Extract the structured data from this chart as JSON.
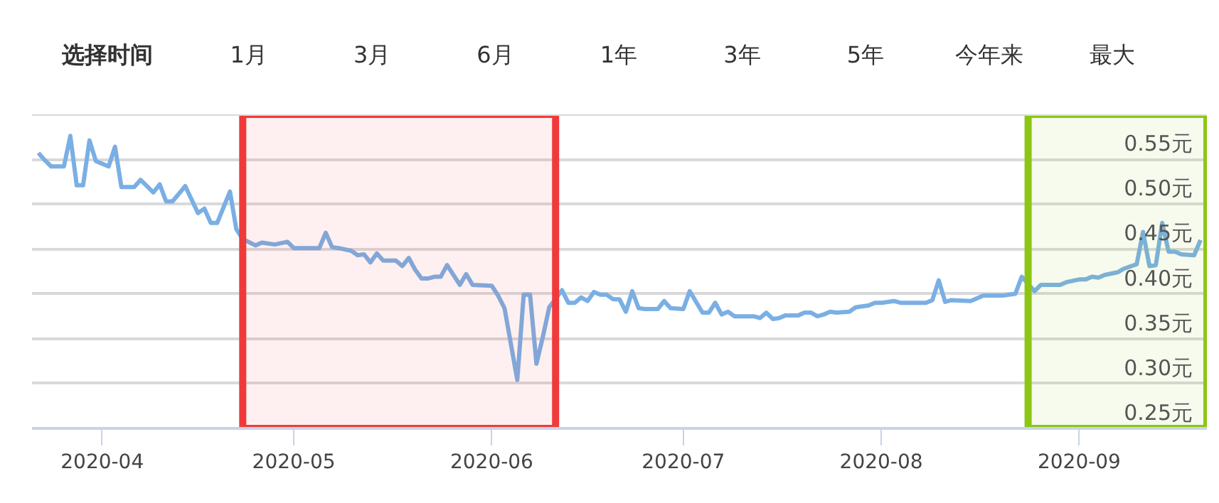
{
  "chart_data": {
    "type": "line",
    "title": "选择时间",
    "annotations": [
      "1月",
      "3月",
      "6月",
      "1年",
      "3年",
      "5年",
      "今年来",
      "最大"
    ],
    "x": [
      "2020-03-22",
      "2020-03-23",
      "2020-03-24",
      "2020-03-26",
      "2020-03-27",
      "2020-03-28",
      "2020-03-29",
      "2020-03-30",
      "2020-03-31",
      "2020-04-02",
      "2020-04-03",
      "2020-04-04",
      "2020-04-06",
      "2020-04-07",
      "2020-04-09",
      "2020-04-10",
      "2020-04-11",
      "2020-04-12",
      "2020-04-14",
      "2020-04-16",
      "2020-04-17",
      "2020-04-18",
      "2020-04-19",
      "2020-04-21",
      "2020-04-22",
      "2020-04-23",
      "2020-04-25",
      "2020-04-26",
      "2020-04-28",
      "2020-04-30",
      "2020-05-01",
      "2020-05-05",
      "2020-05-06",
      "2020-05-07",
      "2020-05-08",
      "2020-05-10",
      "2020-05-11",
      "2020-05-12",
      "2020-05-13",
      "2020-05-14",
      "2020-05-15",
      "2020-05-17",
      "2020-05-18",
      "2020-05-19",
      "2020-05-20",
      "2020-05-21",
      "2020-05-22",
      "2020-05-23",
      "2020-05-24",
      "2020-05-25",
      "2020-05-27",
      "2020-05-28",
      "2020-05-29",
      "2020-06-01",
      "2020-06-02",
      "2020-06-03",
      "2020-06-05",
      "2020-06-06",
      "2020-06-07",
      "2020-06-08",
      "2020-06-09",
      "2020-06-10",
      "2020-06-12",
      "2020-06-13",
      "2020-06-14",
      "2020-06-15",
      "2020-06-16",
      "2020-06-17",
      "2020-06-18",
      "2020-06-19",
      "2020-06-20",
      "2020-06-21",
      "2020-06-22",
      "2020-06-23",
      "2020-06-24",
      "2020-06-25",
      "2020-06-27",
      "2020-06-28",
      "2020-06-29",
      "2020-07-01",
      "2020-07-02",
      "2020-07-04",
      "2020-07-05",
      "2020-07-06",
      "2020-07-07",
      "2020-07-08",
      "2020-07-09",
      "2020-07-12",
      "2020-07-13",
      "2020-07-14",
      "2020-07-15",
      "2020-07-16",
      "2020-07-17",
      "2020-07-19",
      "2020-07-20",
      "2020-07-21",
      "2020-07-22",
      "2020-07-23",
      "2020-07-24",
      "2020-07-25",
      "2020-07-27",
      "2020-07-28",
      "2020-07-30",
      "2020-07-31",
      "2020-08-01",
      "2020-08-03",
      "2020-08-04",
      "2020-08-08",
      "2020-08-09",
      "2020-08-10",
      "2020-08-11",
      "2020-08-12",
      "2020-08-15",
      "2020-08-17",
      "2020-08-20",
      "2020-08-22",
      "2020-08-23",
      "2020-08-25",
      "2020-08-26",
      "2020-08-29",
      "2020-08-30",
      "2020-09-01",
      "2020-09-02",
      "2020-09-03",
      "2020-09-04",
      "2020-09-05",
      "2020-09-07",
      "2020-09-08",
      "2020-09-10",
      "2020-09-11",
      "2020-09-12",
      "2020-09-13",
      "2020-09-14",
      "2020-09-15",
      "2020-09-16",
      "2020-09-17",
      "2020-09-19",
      "2020-09-20"
    ],
    "series": [
      {
        "color": "#7aafe4",
        "values": [
          0.557,
          0.549,
          0.542,
          0.542,
          0.576,
          0.521,
          0.521,
          0.571,
          0.548,
          0.542,
          0.564,
          0.519,
          0.519,
          0.527,
          0.513,
          0.522,
          0.503,
          0.503,
          0.52,
          0.49,
          0.495,
          0.479,
          0.479,
          0.514,
          0.472,
          0.461,
          0.454,
          0.457,
          0.455,
          0.458,
          0.451,
          0.451,
          0.468,
          0.452,
          0.451,
          0.448,
          0.443,
          0.444,
          0.435,
          0.445,
          0.437,
          0.437,
          0.431,
          0.44,
          0.427,
          0.417,
          0.417,
          0.419,
          0.419,
          0.432,
          0.41,
          0.422,
          0.41,
          0.409,
          0.398,
          0.384,
          0.304,
          0.399,
          0.399,
          0.322,
          0.352,
          0.385,
          0.404,
          0.39,
          0.39,
          0.396,
          0.392,
          0.402,
          0.399,
          0.399,
          0.394,
          0.394,
          0.38,
          0.403,
          0.384,
          0.383,
          0.383,
          0.392,
          0.384,
          0.383,
          0.403,
          0.379,
          0.379,
          0.39,
          0.377,
          0.38,
          0.375,
          0.375,
          0.373,
          0.379,
          0.372,
          0.373,
          0.376,
          0.376,
          0.379,
          0.379,
          0.375,
          0.377,
          0.38,
          0.379,
          0.38,
          0.385,
          0.387,
          0.39,
          0.39,
          0.392,
          0.39,
          0.39,
          0.393,
          0.415,
          0.391,
          0.393,
          0.392,
          0.398,
          0.398,
          0.4,
          0.419,
          0.403,
          0.41,
          0.41,
          0.413,
          0.416,
          0.416,
          0.419,
          0.418,
          0.421,
          0.424,
          0.428,
          0.433,
          0.469,
          0.431,
          0.432,
          0.479,
          0.447,
          0.447,
          0.444,
          0.443,
          0.46
        ]
      }
    ],
    "xlim": [
      "2020-03-21",
      "2020-09-21"
    ],
    "xticks": [
      "2020-04",
      "2020-05",
      "2020-06",
      "2020-07",
      "2020-08",
      "2020-09"
    ],
    "ylim": [
      0.25,
      0.6
    ],
    "yticks": [
      {
        "value": 0.25,
        "label": "0.25元"
      },
      {
        "value": 0.3,
        "label": "0.30元"
      },
      {
        "value": 0.35,
        "label": "0.35元"
      },
      {
        "value": 0.4,
        "label": "0.40元"
      },
      {
        "value": 0.45,
        "label": "0.45元"
      },
      {
        "value": 0.5,
        "label": "0.50元"
      },
      {
        "value": 0.55,
        "label": "0.55元"
      }
    ],
    "bands": [
      {
        "axis": "x",
        "from": "2020-04-23",
        "to": "2020-06-11",
        "color": "#f03a3a"
      },
      {
        "axis": "x",
        "from": "2020-08-24",
        "to": "2020-09-21",
        "color": "#8cc614"
      }
    ],
    "grid": "y",
    "marker": "none",
    "line_style": "solid"
  }
}
